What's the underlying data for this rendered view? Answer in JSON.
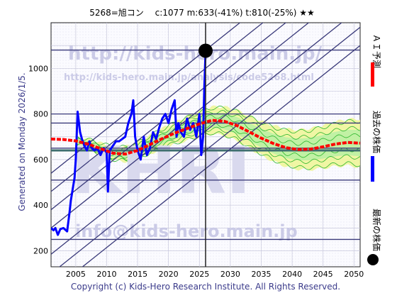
{
  "header": {
    "title": "5268=旭コン　 c:1077  m:633(-41%)  t:810(-25%)  ★★"
  },
  "watermarks": {
    "url_large": "http://kids-hero.main.jp/",
    "url_small": "http://kids-hero.main.jp/analysis/code5268.html",
    "email": "info@kids-hero.main.jp",
    "logo": "KHRI"
  },
  "left_label": "Generated on Monday 2026/1/5.",
  "footer": "Copyright (c) Kids-Hero Research Institute. All Rights Reserved.",
  "legend": [
    {
      "label": "ＡＩ予測",
      "color": "#ff0000"
    },
    {
      "label": "過去の株価",
      "color": "#0000ff"
    },
    {
      "label": "最新の株価",
      "color": "#000000"
    }
  ],
  "chart_data": {
    "type": "line",
    "title": "5268=旭コン　 c:1077  m:633(-41%)  t:810(-25%)  ★★",
    "xlabel": "",
    "ylabel": "",
    "xlim": [
      2001,
      2051
    ],
    "ylim": [
      130,
      1200
    ],
    "x_ticks": [
      2005,
      2010,
      2015,
      2020,
      2025,
      2030,
      2035,
      2040,
      2045,
      2050
    ],
    "y_ticks": [
      200,
      400,
      600,
      800,
      1000
    ],
    "grid": true,
    "latest_price": {
      "x": 2026.0,
      "y": 1077
    },
    "current_date_x": 2026.0,
    "horizontal_levels": [
      1080,
      800,
      760,
      650,
      640,
      510,
      250
    ],
    "trend_lines": [
      {
        "x": [
          2001,
          2051
        ],
        "y": [
          540,
          1620
        ]
      },
      {
        "x": [
          2001,
          2051
        ],
        "y": [
          460,
          1540
        ]
      },
      {
        "x": [
          2001,
          2051
        ],
        "y": [
          380,
          1460
        ]
      },
      {
        "x": [
          2001,
          2051
        ],
        "y": [
          300,
          1380
        ]
      },
      {
        "x": [
          2001,
          2051
        ],
        "y": [
          185,
          1265
        ]
      },
      {
        "x": [
          2001,
          2051
        ],
        "y": [
          100,
          1180
        ]
      },
      {
        "x": [
          2001,
          2051
        ],
        "y": [
          20,
          1100
        ]
      }
    ],
    "series": [
      {
        "name": "過去の株価",
        "color": "#0000ff",
        "x": [
          2001.0,
          2001.4,
          2001.7,
          2002.1,
          2002.5,
          2003.0,
          2003.6,
          2004.0,
          2004.2,
          2004.5,
          2004.8,
          2005.0,
          2005.3,
          2005.7,
          2006.0,
          2006.4,
          2006.8,
          2007.2,
          2007.6,
          2008.0,
          2008.5,
          2009.0,
          2009.5,
          2010.0,
          2010.2,
          2010.5,
          2011.0,
          2011.5,
          2012.0,
          2012.5,
          2013.0,
          2013.5,
          2014.0,
          2014.3,
          2014.6,
          2015.0,
          2015.5,
          2016.0,
          2016.5,
          2017.0,
          2017.5,
          2018.0,
          2018.5,
          2019.0,
          2019.5,
          2020.0,
          2020.5,
          2021.0,
          2021.3,
          2021.6,
          2022.0,
          2022.5,
          2023.0,
          2023.5,
          2024.0,
          2024.5,
          2025.0,
          2025.3,
          2025.6,
          2025.8,
          2026.0
        ],
        "y": [
          300,
          290,
          300,
          270,
          295,
          300,
          285,
          370,
          420,
          470,
          520,
          600,
          810,
          720,
          690,
          660,
          640,
          680,
          650,
          640,
          650,
          620,
          650,
          630,
          460,
          640,
          660,
          680,
          680,
          690,
          700,
          760,
          800,
          860,
          700,
          640,
          600,
          700,
          620,
          650,
          720,
          690,
          740,
          780,
          800,
          760,
          820,
          860,
          700,
          760,
          720,
          700,
          780,
          730,
          760,
          700,
          800,
          620,
          700,
          920,
          1077
        ]
      },
      {
        "name": "ＡＩ予測",
        "color": "#ff0000",
        "x": [
          2001,
          2003,
          2005,
          2007,
          2009,
          2011,
          2013,
          2015,
          2017,
          2019,
          2021,
          2023,
          2025,
          2027,
          2029,
          2031,
          2033,
          2035,
          2037,
          2039,
          2041,
          2043,
          2045,
          2047,
          2049,
          2051
        ],
        "y": [
          690,
          688,
          682,
          668,
          648,
          628,
          624,
          640,
          666,
          692,
          716,
          736,
          756,
          772,
          768,
          750,
          722,
          694,
          670,
          652,
          644,
          646,
          656,
          668,
          675,
          672
        ]
      }
    ]
  }
}
